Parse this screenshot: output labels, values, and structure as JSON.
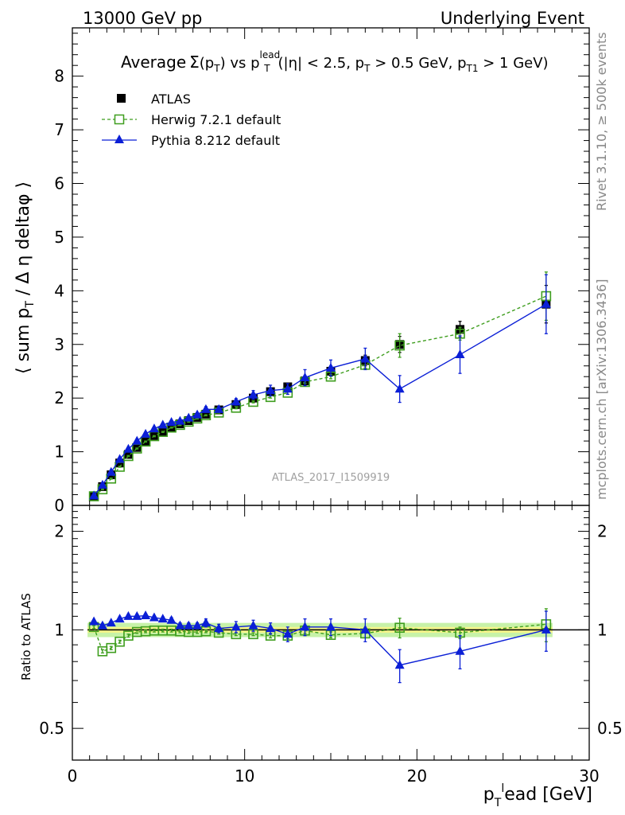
{
  "header": {
    "left": "13000 GeV pp",
    "right": "Underlying Event"
  },
  "side_labels": {
    "rivet": "Rivet 3.1.10, ≥ 500k events",
    "mcplots": "mcplots.cern.ch [arXiv:1306.3436]"
  },
  "watermark": "ATLAS_2017_I1509919",
  "colors": {
    "atlas": "#000000",
    "herwig": "#3f9e1f",
    "pythia": "#0b1fd6",
    "band_inner": "#f4f58a",
    "band_outer": "#c7f2a8"
  },
  "chart_data": [
    {
      "type": "scatter",
      "panel": "main",
      "title": "Average Σ(pT) vs pT lead (|η| < 2.5, pT > 0.5 GeV, pT1 > 1 GeV)",
      "title_parts": {
        "average": "Average",
        "sigma": "Σ",
        "ptlead_sup": "lead",
        "range": "(|η| < 2.5, p",
        "cut1": " > 0.5 GeV, p",
        "t1": "T1",
        "cut2": " > 1 GeV)"
      },
      "ylabel": "⟨ sum pT / Δη deltaφ ⟩",
      "xlabel": "pTlead [GeV]",
      "xlim": [
        0,
        30
      ],
      "ylim": [
        0,
        8.9
      ],
      "x_ticks": [
        0,
        10,
        20,
        30
      ],
      "y_ticks": [
        0,
        1,
        2,
        3,
        4,
        5,
        6,
        7,
        8
      ],
      "legend_placement": "top-left",
      "series": [
        {
          "name": "ATLAS",
          "marker": "filled-square",
          "x": [
            1.25,
            1.75,
            2.25,
            2.75,
            3.25,
            3.75,
            4.25,
            4.75,
            5.25,
            5.75,
            6.25,
            6.75,
            7.25,
            7.75,
            8.5,
            9.5,
            10.5,
            11.5,
            12.5,
            13.5,
            15.0,
            17.0,
            19.0,
            22.5,
            27.5
          ],
          "y": [
            0.17,
            0.35,
            0.57,
            0.79,
            0.95,
            1.08,
            1.2,
            1.3,
            1.38,
            1.46,
            1.52,
            1.58,
            1.64,
            1.7,
            1.78,
            1.88,
            2.0,
            2.12,
            2.21,
            2.32,
            2.5,
            2.7,
            3.0,
            3.28,
            3.75
          ],
          "err": [
            0.02,
            0.02,
            0.02,
            0.03,
            0.03,
            0.03,
            0.03,
            0.03,
            0.03,
            0.03,
            0.03,
            0.03,
            0.03,
            0.03,
            0.04,
            0.04,
            0.05,
            0.05,
            0.06,
            0.07,
            0.08,
            0.1,
            0.15,
            0.15,
            0.35
          ]
        },
        {
          "name": "Herwig 7.2.1 default",
          "marker": "open-square",
          "line": "dashed",
          "x": [
            1.25,
            1.75,
            2.25,
            2.75,
            3.25,
            3.75,
            4.25,
            4.75,
            5.25,
            5.75,
            6.25,
            6.75,
            7.25,
            7.75,
            8.5,
            9.5,
            10.5,
            11.5,
            12.5,
            13.5,
            15.0,
            17.0,
            19.0,
            22.5,
            27.5
          ],
          "y": [
            0.17,
            0.3,
            0.5,
            0.72,
            0.92,
            1.06,
            1.19,
            1.29,
            1.37,
            1.45,
            1.5,
            1.56,
            1.62,
            1.68,
            1.73,
            1.82,
            1.93,
            2.02,
            2.1,
            2.3,
            2.4,
            2.62,
            2.98,
            3.2,
            3.9
          ],
          "err": [
            0.01,
            0.01,
            0.01,
            0.01,
            0.01,
            0.01,
            0.01,
            0.01,
            0.01,
            0.01,
            0.01,
            0.01,
            0.01,
            0.01,
            0.01,
            0.02,
            0.02,
            0.02,
            0.03,
            0.03,
            0.04,
            0.06,
            0.22,
            0.12,
            0.45
          ]
        },
        {
          "name": "Pythia 8.212 default",
          "marker": "filled-triangle",
          "line": "solid",
          "x": [
            1.25,
            1.75,
            2.25,
            2.75,
            3.25,
            3.75,
            4.25,
            4.75,
            5.25,
            5.75,
            6.25,
            6.75,
            7.25,
            7.75,
            8.5,
            9.5,
            10.5,
            11.5,
            12.5,
            13.5,
            15.0,
            17.0,
            19.0,
            22.5,
            27.5
          ],
          "y": [
            0.18,
            0.38,
            0.62,
            0.86,
            1.05,
            1.2,
            1.33,
            1.43,
            1.5,
            1.55,
            1.57,
            1.63,
            1.69,
            1.79,
            1.79,
            1.93,
            2.06,
            2.14,
            2.17,
            2.38,
            2.56,
            2.73,
            2.17,
            2.81,
            3.75
          ],
          "err": [
            0.01,
            0.01,
            0.01,
            0.02,
            0.02,
            0.02,
            0.02,
            0.02,
            0.02,
            0.03,
            0.03,
            0.03,
            0.04,
            0.05,
            0.05,
            0.06,
            0.08,
            0.1,
            0.1,
            0.15,
            0.15,
            0.2,
            0.25,
            0.35,
            0.55
          ]
        }
      ]
    },
    {
      "type": "scatter",
      "panel": "ratio",
      "ylabel": "Ratio to ATLAS",
      "xlim": [
        0,
        30
      ],
      "ylim": [
        0.4,
        2.4
      ],
      "log_y": true,
      "y_ticks": [
        0.5,
        1,
        2
      ],
      "reference_band": {
        "inner": 0.02,
        "outer": 0.05
      },
      "series": [
        {
          "name": "Herwig 7.2.1 default",
          "x": [
            1.25,
            1.75,
            2.25,
            2.75,
            3.25,
            3.75,
            4.25,
            4.75,
            5.25,
            5.75,
            6.25,
            6.75,
            7.25,
            7.75,
            8.5,
            9.5,
            10.5,
            11.5,
            12.5,
            13.5,
            15.0,
            17.0,
            19.0,
            22.5,
            27.5
          ],
          "y": [
            1.02,
            0.86,
            0.88,
            0.92,
            0.96,
            0.985,
            0.99,
            0.995,
            0.995,
            0.995,
            0.99,
            0.985,
            0.985,
            0.99,
            0.98,
            0.97,
            0.97,
            0.96,
            0.96,
            0.995,
            0.965,
            0.975,
            1.015,
            0.98,
            1.04
          ],
          "err": [
            0.01,
            0.01,
            0.01,
            0.01,
            0.01,
            0.01,
            0.01,
            0.01,
            0.01,
            0.01,
            0.01,
            0.01,
            0.01,
            0.01,
            0.01,
            0.01,
            0.01,
            0.015,
            0.02,
            0.02,
            0.02,
            0.03,
            0.07,
            0.04,
            0.12
          ]
        },
        {
          "name": "Pythia 8.212 default",
          "x": [
            1.25,
            1.75,
            2.25,
            2.75,
            3.25,
            3.75,
            4.25,
            4.75,
            5.25,
            5.75,
            6.25,
            6.75,
            7.25,
            7.75,
            8.5,
            9.5,
            10.5,
            11.5,
            12.5,
            13.5,
            15.0,
            17.0,
            19.0,
            22.5,
            27.5
          ],
          "y": [
            1.06,
            1.03,
            1.05,
            1.08,
            1.1,
            1.1,
            1.105,
            1.09,
            1.08,
            1.07,
            1.03,
            1.03,
            1.03,
            1.05,
            1.01,
            1.02,
            1.03,
            1.01,
            0.97,
            1.02,
            1.02,
            1.0,
            0.78,
            0.86,
            1.0
          ],
          "err": [
            0.01,
            0.01,
            0.01,
            0.015,
            0.015,
            0.015,
            0.015,
            0.015,
            0.015,
            0.02,
            0.02,
            0.02,
            0.02,
            0.03,
            0.03,
            0.04,
            0.04,
            0.04,
            0.05,
            0.06,
            0.06,
            0.08,
            0.09,
            0.1,
            0.14
          ]
        }
      ]
    }
  ]
}
